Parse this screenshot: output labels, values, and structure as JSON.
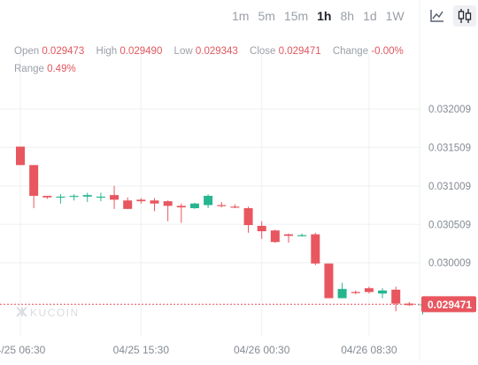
{
  "toolbar": {
    "intervals": [
      "1m",
      "5m",
      "15m",
      "1h",
      "8h",
      "1d",
      "1W"
    ],
    "active_interval": "1h",
    "line_icon": "line-chart-icon",
    "candle_icon": "candlestick-icon"
  },
  "ohlc": {
    "open_label": "Open",
    "open": "0.029473",
    "high_label": "High",
    "high": "0.029490",
    "low_label": "Low",
    "low": "0.029343",
    "close_label": "Close",
    "close": "0.029471",
    "change_label": "Change",
    "change": "-0.00%",
    "range_label": "Range",
    "range": "0.49%"
  },
  "watermark": "KUCOIN",
  "colors": {
    "up": "#26b68f",
    "down": "#e8565f",
    "grid": "#eef0f2",
    "price_tag": "#e8565f"
  },
  "chart_data": {
    "type": "candlestick",
    "y_ticks": [
      "0.032009",
      "0.031509",
      "0.031009",
      "0.030509",
      "0.030009"
    ],
    "y_tick_values": [
      0.032009,
      0.031509,
      0.031009,
      0.030509,
      0.030009
    ],
    "x_ticks": [
      "4/25 06:30",
      "04/25 15:30",
      "04/26 00:30",
      "04/26 08:30"
    ],
    "x_tick_index": [
      0,
      9,
      18,
      26
    ],
    "ylim": [
      0.02905,
      0.03232
    ],
    "last_price": 0.029471,
    "last_price_label": "0.029471",
    "candles": [
      {
        "o": 0.03152,
        "h": 0.03152,
        "c": 0.03128,
        "l": 0.03128
      },
      {
        "o": 0.03128,
        "h": 0.03128,
        "c": 0.03088,
        "l": 0.03072
      },
      {
        "o": 0.03088,
        "h": 0.03088,
        "c": 0.03086,
        "l": 0.03084
      },
      {
        "o": 0.03087,
        "h": 0.0309,
        "c": 0.03087,
        "l": 0.03078
      },
      {
        "o": 0.03087,
        "h": 0.0309,
        "c": 0.03088,
        "l": 0.03082
      },
      {
        "o": 0.03087,
        "h": 0.03092,
        "c": 0.03089,
        "l": 0.0308
      },
      {
        "o": 0.03087,
        "h": 0.03092,
        "c": 0.03087,
        "l": 0.03081
      },
      {
        "o": 0.03089,
        "h": 0.03101,
        "c": 0.03083,
        "l": 0.03071
      },
      {
        "o": 0.03082,
        "h": 0.03086,
        "c": 0.03071,
        "l": 0.03071
      },
      {
        "o": 0.03083,
        "h": 0.03085,
        "c": 0.03081,
        "l": 0.03078
      },
      {
        "o": 0.03082,
        "h": 0.03085,
        "c": 0.03078,
        "l": 0.03068
      },
      {
        "o": 0.03081,
        "h": 0.03082,
        "c": 0.03075,
        "l": 0.03055
      },
      {
        "o": 0.03075,
        "h": 0.03078,
        "c": 0.03073,
        "l": 0.03053
      },
      {
        "o": 0.03072,
        "h": 0.03079,
        "c": 0.03078,
        "l": 0.03071
      },
      {
        "o": 0.03076,
        "h": 0.0309,
        "c": 0.03088,
        "l": 0.03072
      },
      {
        "o": 0.03076,
        "h": 0.0308,
        "c": 0.03075,
        "l": 0.03073
      },
      {
        "o": 0.03074,
        "h": 0.03077,
        "c": 0.03073,
        "l": 0.03072
      },
      {
        "o": 0.03072,
        "h": 0.03074,
        "c": 0.0305,
        "l": 0.0304
      },
      {
        "o": 0.03049,
        "h": 0.03055,
        "c": 0.03042,
        "l": 0.03032
      },
      {
        "o": 0.03043,
        "h": 0.03044,
        "c": 0.03028,
        "l": 0.03027
      },
      {
        "o": 0.03038,
        "h": 0.03039,
        "c": 0.03036,
        "l": 0.03027
      },
      {
        "o": 0.03037,
        "h": 0.03039,
        "c": 0.03037,
        "l": 0.03035
      },
      {
        "o": 0.03038,
        "h": 0.0304,
        "c": 0.03,
        "l": 0.02998
      },
      {
        "o": 0.03,
        "h": 0.03,
        "c": 0.02955,
        "l": 0.02955
      },
      {
        "o": 0.02955,
        "h": 0.02975,
        "c": 0.02967,
        "l": 0.02955
      },
      {
        "o": 0.02963,
        "h": 0.02965,
        "c": 0.02962,
        "l": 0.0296
      },
      {
        "o": 0.02968,
        "h": 0.0297,
        "c": 0.02963,
        "l": 0.02961
      },
      {
        "o": 0.02961,
        "h": 0.02968,
        "c": 0.02965,
        "l": 0.02955
      },
      {
        "o": 0.02966,
        "h": 0.0297,
        "c": 0.02948,
        "l": 0.02938
      },
      {
        "o": 0.02948,
        "h": 0.0295,
        "c": 0.02946,
        "l": 0.02945
      },
      {
        "o": 0.02947,
        "h": 0.02949,
        "c": 0.02947,
        "l": 0.02934
      }
    ]
  }
}
